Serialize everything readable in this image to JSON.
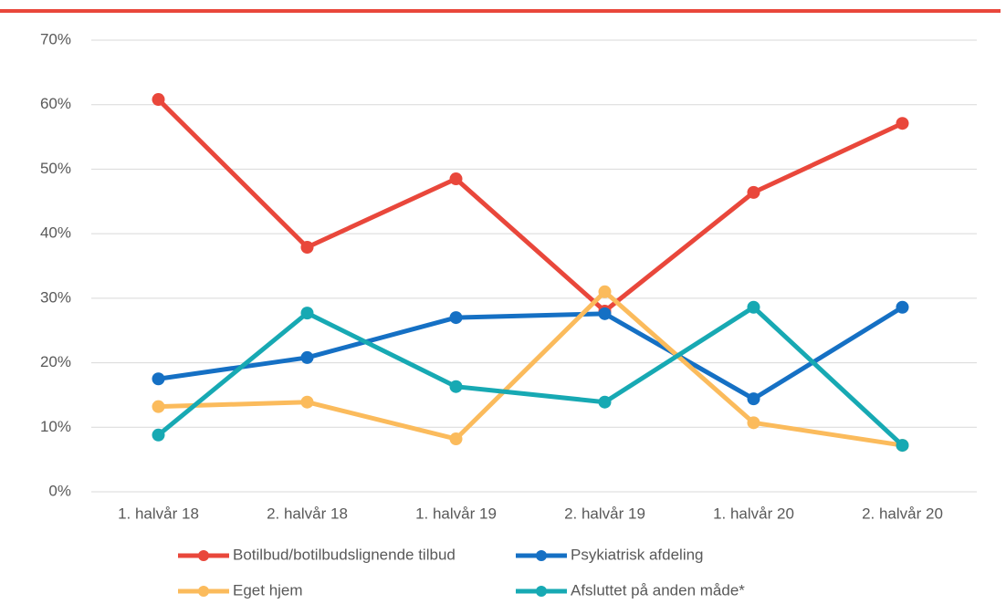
{
  "chart_data": {
    "type": "line",
    "categories": [
      "1. halvår 18",
      "2. halvår 18",
      "1. halvår 19",
      "2. halvår 19",
      "1. halvår 20",
      "2. halvår 20"
    ],
    "series": [
      {
        "name": "Botilbud/botilbudslignende tilbud",
        "color": "#e9473b",
        "values": [
          60.8,
          37.9,
          48.5,
          28.0,
          46.4,
          57.1
        ]
      },
      {
        "name": "Psykiatrisk afdeling",
        "color": "#1570c4",
        "values": [
          17.5,
          20.8,
          27.0,
          27.6,
          14.4,
          28.6
        ]
      },
      {
        "name": "Eget hjem",
        "color": "#fbbb5c",
        "values": [
          13.2,
          13.9,
          8.2,
          31.0,
          10.7,
          7.2
        ]
      },
      {
        "name": "Afsluttet på anden måde*",
        "color": "#17a9b3",
        "values": [
          8.8,
          27.7,
          16.3,
          13.9,
          28.6,
          7.2
        ]
      }
    ],
    "ylim": [
      0,
      70
    ],
    "yticks": [
      {
        "value": 0,
        "label": "0%"
      },
      {
        "value": 10,
        "label": "10%"
      },
      {
        "value": 20,
        "label": "20%"
      },
      {
        "value": 30,
        "label": "30%"
      },
      {
        "value": 40,
        "label": "40%"
      },
      {
        "value": 50,
        "label": "50%"
      },
      {
        "value": 60,
        "label": "60%"
      },
      {
        "value": 70,
        "label": "70%"
      }
    ],
    "grid": true
  }
}
